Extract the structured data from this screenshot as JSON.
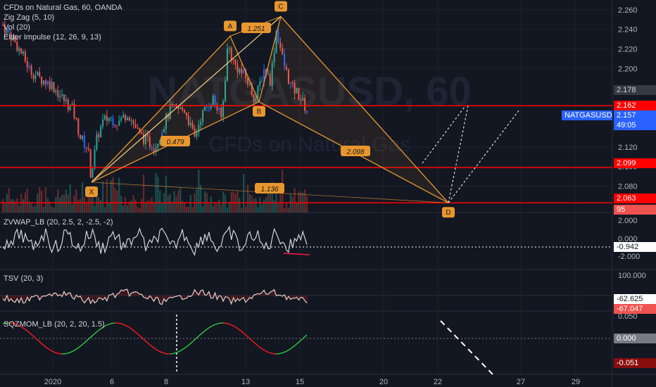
{
  "legends": {
    "main": [
      "CFDs on Natural Gas, 60, OANDA",
      "Zig Zag (5, 10)",
      "Vol (20)",
      "Elder Impulse (12, 26, 9, 13)"
    ],
    "zvwap": "ZVWAP_LB (20, 2.5, 2, -2.5, -2)",
    "tsv": "TSV (20, 3)",
    "sqzmom": "SQZMOM_LB (20, 2, 20, 1.5)"
  },
  "watermark": {
    "main": "NATGASUSD, 60",
    "sub": "CFDs on Natural Gas"
  },
  "badges": {
    "last": "2.178",
    "red1": "2.162",
    "symbol": "NATGASUSD",
    "price": "2.157",
    "countdown": "49:05",
    "red2": "2.099",
    "red3": "2.063",
    "vol": "95",
    "zvwap": "-0.942",
    "tsv1": "-62.625",
    "tsv2": "-67.047",
    "sq1": "0.000",
    "sq2": "-0.051"
  },
  "colors": {
    "background": "#131722",
    "up": "#26a69a",
    "down": "#ef5350",
    "neutral": "#2962ff",
    "harmonic": "#e8962e",
    "redline": "#ff0000",
    "grid": "#2a2e39"
  },
  "chart_data": {
    "type": "candlestick",
    "symbol": "NATGASUSD",
    "interval": "60",
    "price_axis": {
      "ticks": [
        "2.260",
        "2.240",
        "2.220",
        "2.200",
        "2.120",
        "2.100",
        "2.080"
      ],
      "range": [
        2.056,
        2.267
      ]
    },
    "x_axis": {
      "ticks": [
        "2020",
        "6",
        "8",
        "13",
        "15",
        "20",
        "22",
        "27",
        "29"
      ]
    },
    "horizontal_lines": [
      2.162,
      2.099,
      2.063
    ],
    "xabcd_pattern": {
      "points": [
        {
          "label": "X",
          "price": 2.084
        },
        {
          "label": "A",
          "price": 2.233
        },
        {
          "label": "B",
          "price": 2.166
        },
        {
          "label": "C",
          "price": 2.253
        },
        {
          "label": "D",
          "price": 2.063
        }
      ],
      "ratios": [
        "0.479",
        "1.251",
        "2.098",
        "1.136"
      ]
    },
    "close_path": [
      {
        "t": 0,
        "p": 2.244
      },
      {
        "t": 0.03,
        "p": 2.232
      },
      {
        "t": 0.06,
        "p": 2.216
      },
      {
        "t": 0.09,
        "p": 2.198
      },
      {
        "t": 0.12,
        "p": 2.19
      },
      {
        "t": 0.16,
        "p": 2.184
      },
      {
        "t": 0.2,
        "p": 2.168
      },
      {
        "t": 0.23,
        "p": 2.158
      },
      {
        "t": 0.255,
        "p": 2.13
      },
      {
        "t": 0.28,
        "p": 2.118
      },
      {
        "t": 0.29,
        "p": 2.09
      },
      {
        "t": 0.31,
        "p": 2.13
      },
      {
        "t": 0.33,
        "p": 2.146
      },
      {
        "t": 0.35,
        "p": 2.15
      },
      {
        "t": 0.38,
        "p": 2.145
      },
      {
        "t": 0.41,
        "p": 2.155
      },
      {
        "t": 0.45,
        "p": 2.132
      },
      {
        "t": 0.5,
        "p": 2.12
      },
      {
        "t": 0.55,
        "p": 2.158
      },
      {
        "t": 0.6,
        "p": 2.158
      },
      {
        "t": 0.63,
        "p": 2.128
      },
      {
        "t": 0.65,
        "p": 2.15
      },
      {
        "t": 0.69,
        "p": 2.17
      },
      {
        "t": 0.72,
        "p": 2.148
      },
      {
        "t": 0.74,
        "p": 2.225
      },
      {
        "t": 0.76,
        "p": 2.205
      },
      {
        "t": 0.8,
        "p": 2.19
      },
      {
        "t": 0.83,
        "p": 2.168
      },
      {
        "t": 0.86,
        "p": 2.2
      },
      {
        "t": 0.88,
        "p": 2.188
      },
      {
        "t": 0.9,
        "p": 2.24
      },
      {
        "t": 0.925,
        "p": 2.203
      },
      {
        "t": 0.95,
        "p": 2.18
      },
      {
        "t": 0.97,
        "p": 2.175
      },
      {
        "t": 1,
        "p": 2.157
      }
    ],
    "zvwap_axis": [
      "2.000",
      "0.000",
      "-2.000"
    ],
    "zvwap_last": -0.942,
    "tsv_axis": [
      "100.000"
    ],
    "tsv_last": [
      -62.625,
      -67.047
    ],
    "sqzmom_axis": [
      "0.050",
      "0.000"
    ],
    "sqzmom_last": -0.051
  }
}
